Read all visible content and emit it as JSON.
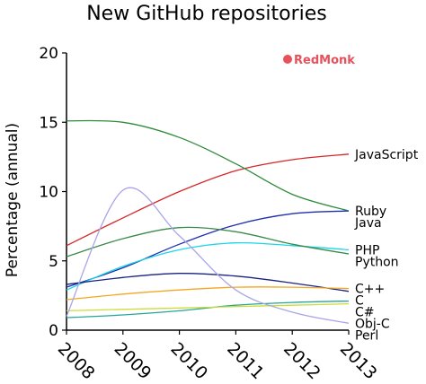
{
  "brand": {
    "text": "RedMonk",
    "color": "#e8505b"
  },
  "chart_data": {
    "type": "line",
    "title": "New GitHub repositories",
    "xlabel": "",
    "ylabel": "Percentage (annual)",
    "x": [
      2008,
      2009,
      2010,
      2011,
      2012,
      2013
    ],
    "xlim": [
      2008,
      2013
    ],
    "ylim": [
      0,
      20
    ],
    "yticks": [
      0,
      5,
      10,
      15,
      20
    ],
    "grid": false,
    "legend": "labels at right end of lines",
    "series": [
      {
        "name": "JavaScript",
        "color": "#d62728",
        "values": [
          6.1,
          8.1,
          10.0,
          11.5,
          12.3,
          12.7
        ]
      },
      {
        "name": "Ruby",
        "color": "#2e8b3a",
        "values": [
          15.1,
          15.0,
          13.9,
          12.0,
          9.8,
          8.6
        ]
      },
      {
        "name": "Java",
        "color": "#1f2fb0",
        "values": [
          3.1,
          4.5,
          6.2,
          7.6,
          8.4,
          8.6
        ]
      },
      {
        "name": "PHP",
        "color": "#1ad6e8",
        "values": [
          2.9,
          4.6,
          5.8,
          6.3,
          6.1,
          5.8
        ]
      },
      {
        "name": "Python",
        "color": "#3a8a4a",
        "values": [
          5.3,
          6.6,
          7.4,
          7.1,
          6.2,
          5.5
        ]
      },
      {
        "name": "C",
        "color": "#1a237e",
        "values": [
          3.3,
          3.8,
          4.1,
          3.9,
          3.4,
          2.8
        ]
      },
      {
        "name": "C++",
        "color": "#f5a623",
        "values": [
          2.2,
          2.6,
          2.9,
          3.1,
          3.1,
          3.0
        ]
      },
      {
        "name": "C#",
        "color": "#26a69a",
        "values": [
          0.9,
          1.1,
          1.4,
          1.8,
          2.0,
          2.1
        ]
      },
      {
        "name": "Obj-C",
        "color": "#cddc39",
        "values": [
          1.4,
          1.5,
          1.6,
          1.7,
          1.8,
          1.9
        ]
      },
      {
        "name": "Perl",
        "color": "#a9a4e8",
        "values": [
          1.0,
          10.1,
          6.8,
          2.9,
          1.3,
          0.5
        ]
      }
    ]
  }
}
